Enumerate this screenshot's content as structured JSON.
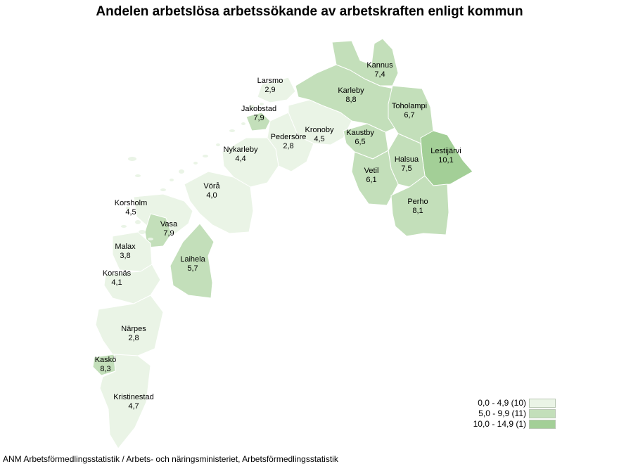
{
  "title": "Andelen arbetslösa arbetssökande av arbetskraften enligt kommun",
  "colors": {
    "class_low": "#eaf4e6",
    "class_mid": "#c3dfba",
    "class_high": "#a3cf97",
    "border": "#ffffff"
  },
  "municipalities": [
    {
      "name": "Kannus",
      "value": "7,4",
      "class": "mid"
    },
    {
      "name": "Larsmo",
      "value": "2,9",
      "class": "low"
    },
    {
      "name": "Karleby",
      "value": "8,8",
      "class": "mid"
    },
    {
      "name": "Toholampi",
      "value": "6,7",
      "class": "mid"
    },
    {
      "name": "Jakobstad",
      "value": "7,9",
      "class": "mid"
    },
    {
      "name": "Kronoby",
      "value": "4,5",
      "class": "low"
    },
    {
      "name": "Pedersöre",
      "value": "2,8",
      "class": "low"
    },
    {
      "name": "Kaustby",
      "value": "6,5",
      "class": "mid"
    },
    {
      "name": "Lestijärvi",
      "value": "10,1",
      "class": "high"
    },
    {
      "name": "Nykarleby",
      "value": "4,4",
      "class": "low"
    },
    {
      "name": "Halsua",
      "value": "7,5",
      "class": "mid"
    },
    {
      "name": "Vetil",
      "value": "6,1",
      "class": "mid"
    },
    {
      "name": "Vörå",
      "value": "4,0",
      "class": "low"
    },
    {
      "name": "Perho",
      "value": "8,1",
      "class": "mid"
    },
    {
      "name": "Korsholm",
      "value": "4,5",
      "class": "low"
    },
    {
      "name": "Vasa",
      "value": "7,9",
      "class": "mid"
    },
    {
      "name": "Malax",
      "value": "3,8",
      "class": "low"
    },
    {
      "name": "Laihela",
      "value": "5,7",
      "class": "mid"
    },
    {
      "name": "Korsnäs",
      "value": "4,1",
      "class": "low"
    },
    {
      "name": "Närpes",
      "value": "2,8",
      "class": "low"
    },
    {
      "name": "Kaskö",
      "value": "8,3",
      "class": "mid"
    },
    {
      "name": "Kristinestad",
      "value": "4,7",
      "class": "low"
    }
  ],
  "legend": [
    {
      "label": "0,0 - 4,9 (10)",
      "class": "low"
    },
    {
      "label": "5,0 - 9,9 (11)",
      "class": "mid"
    },
    {
      "label": "10,0 - 14,9 (1)",
      "class": "high"
    }
  ],
  "source": "ANM Arbetsförmedlingsstatistik / Arbets- och näringsministeriet, Arbetsförmedlingsstatistik"
}
